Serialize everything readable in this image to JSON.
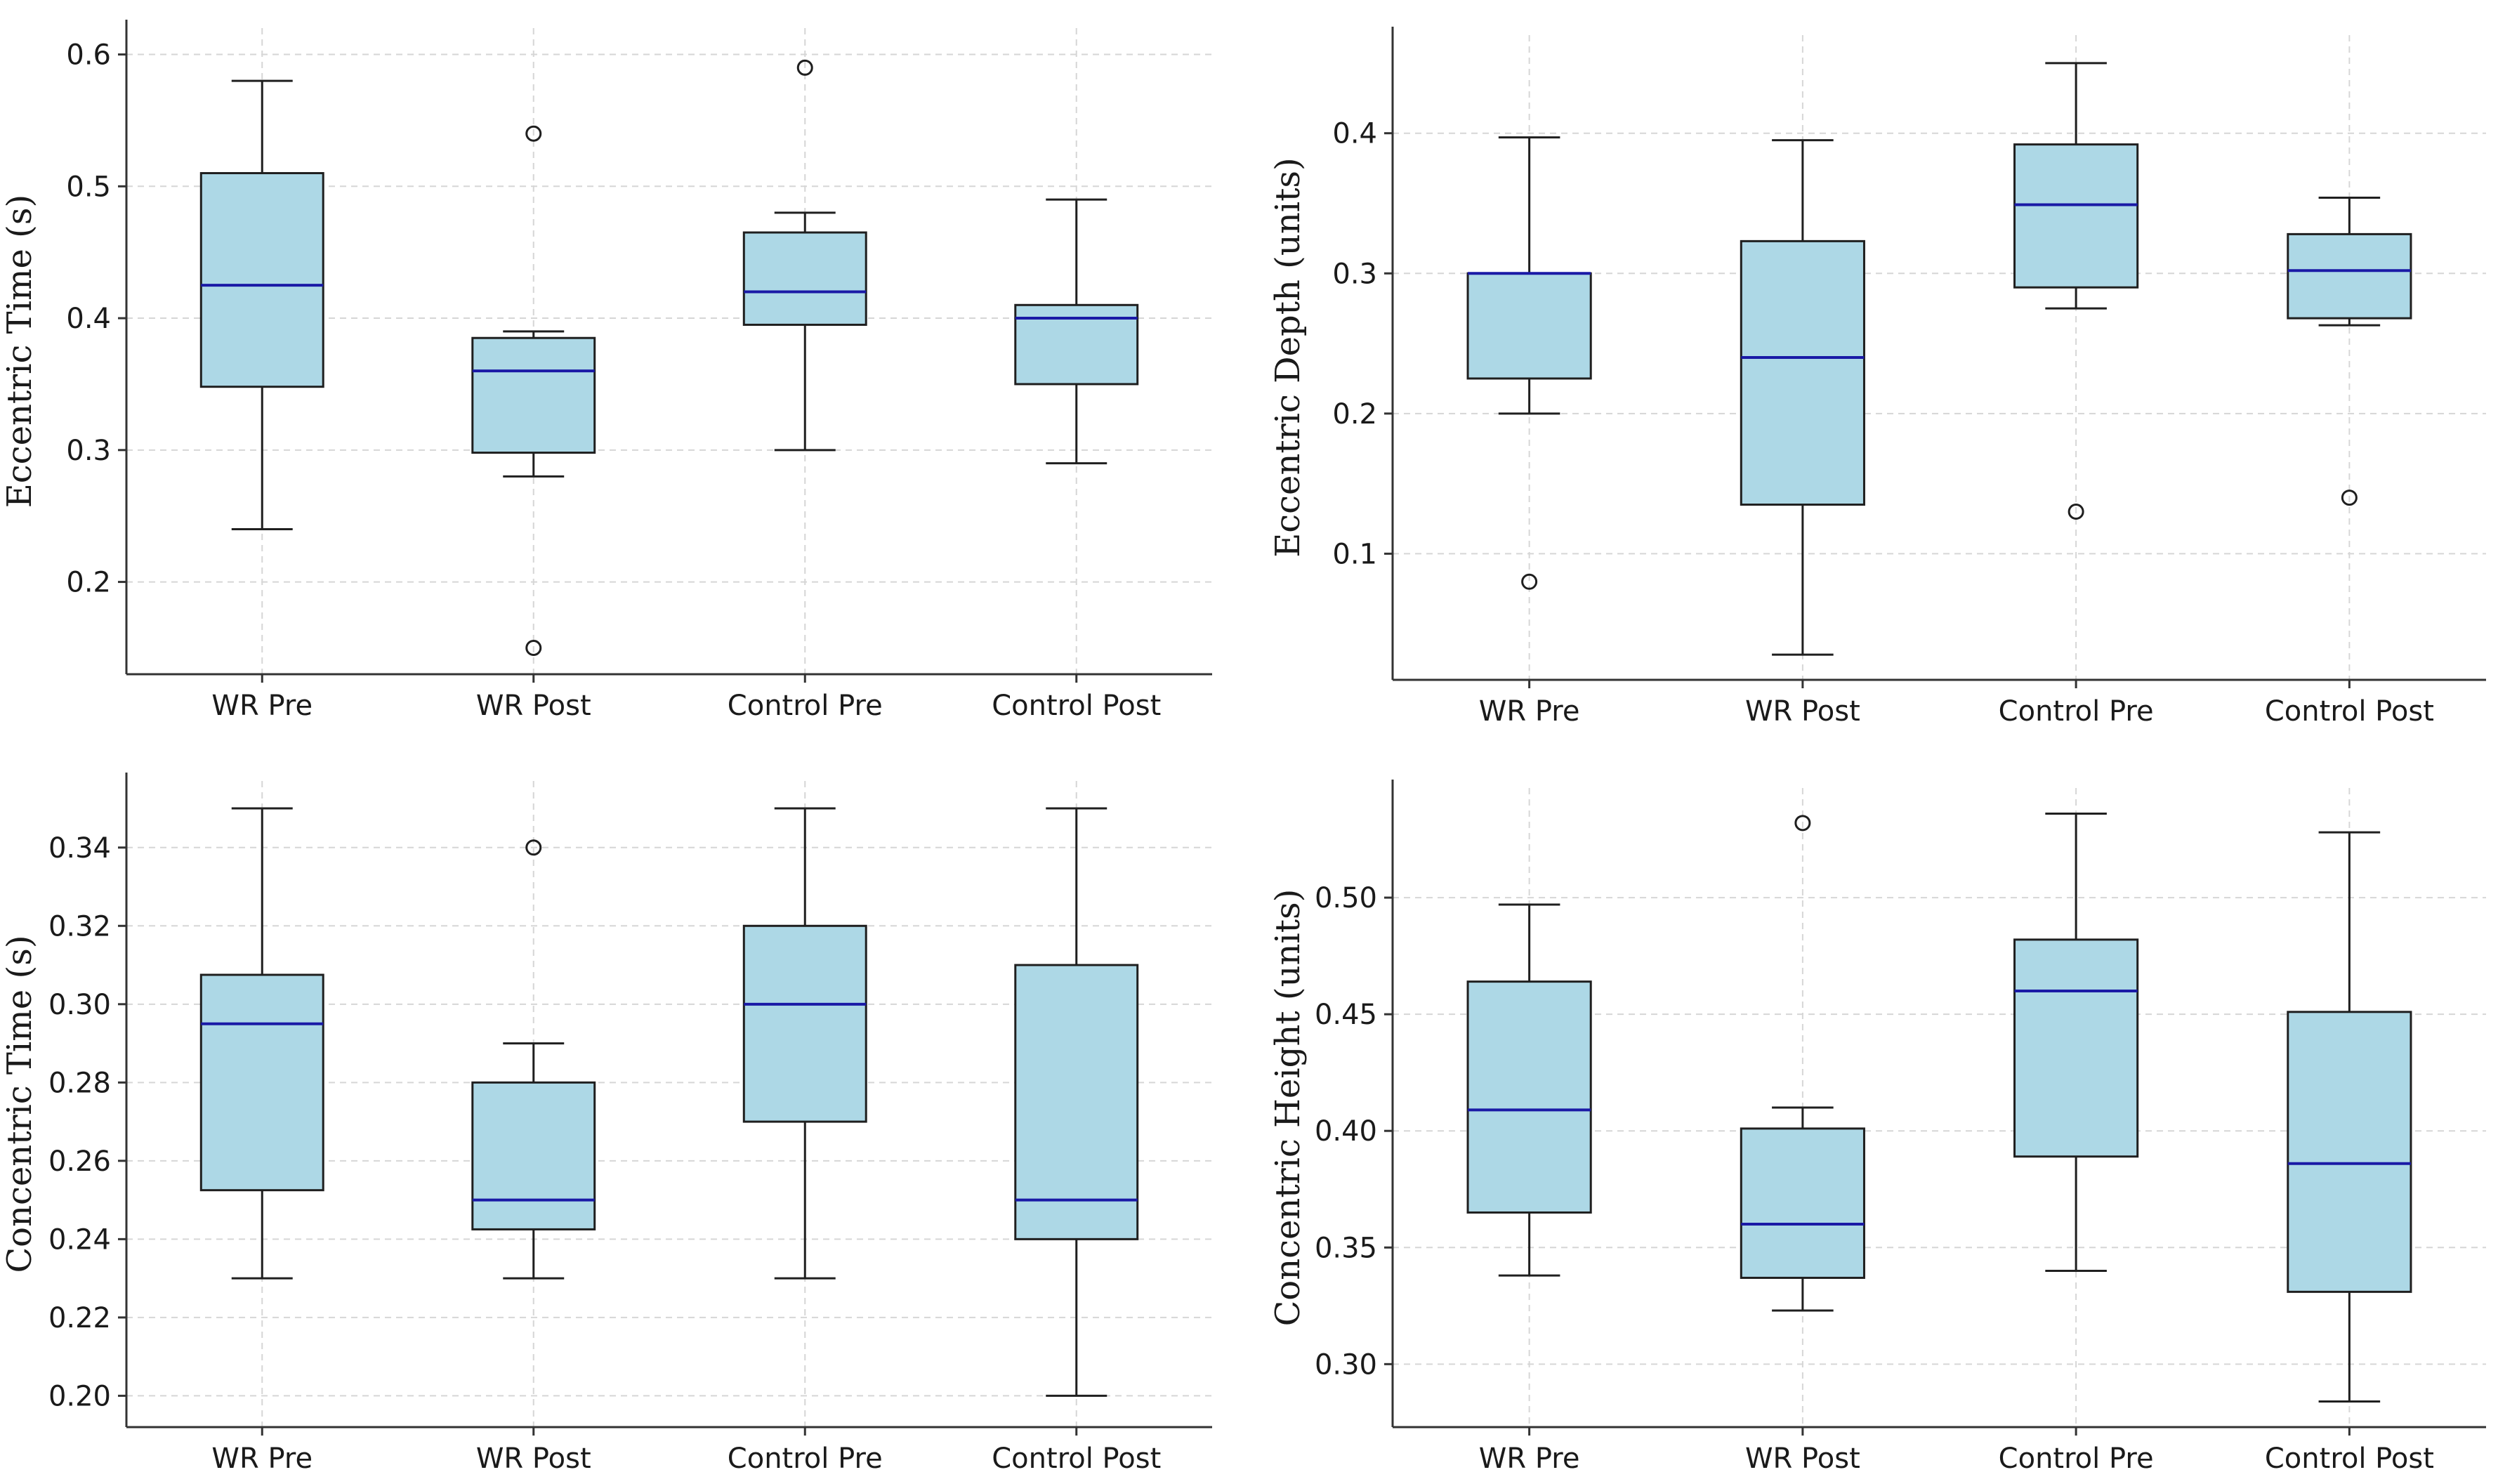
{
  "chart_data": [
    {
      "type": "box",
      "ylabel": "Eccentric Time (s)",
      "categories": [
        "WR Pre",
        "WR Post",
        "Control Pre",
        "Control Post"
      ],
      "ylim": [
        0.13,
        0.62
      ],
      "yticks": [
        0.2,
        0.3,
        0.4,
        0.5,
        0.6
      ],
      "tick_labels": [
        "0.2",
        "0.3",
        "0.4",
        "0.5",
        "0.6"
      ],
      "grid": true,
      "boxes": [
        {
          "category": "WR Pre",
          "whisker_low": 0.24,
          "q1": 0.348,
          "median": 0.425,
          "q3": 0.51,
          "whisker_high": 0.58,
          "outliers": []
        },
        {
          "category": "WR Post",
          "whisker_low": 0.28,
          "q1": 0.298,
          "median": 0.36,
          "q3": 0.385,
          "whisker_high": 0.39,
          "outliers": [
            0.54,
            0.15
          ]
        },
        {
          "category": "Control Pre",
          "whisker_low": 0.3,
          "q1": 0.395,
          "median": 0.42,
          "q3": 0.465,
          "whisker_high": 0.48,
          "outliers": [
            0.59
          ]
        },
        {
          "category": "Control Post",
          "whisker_low": 0.29,
          "q1": 0.35,
          "median": 0.4,
          "q3": 0.41,
          "whisker_high": 0.49,
          "outliers": []
        }
      ]
    },
    {
      "type": "box",
      "ylabel": "Eccentric Depth (units)",
      "categories": [
        "WR Pre",
        "WR Post",
        "Control Pre",
        "Control Post"
      ],
      "ylim": [
        0.01,
        0.47
      ],
      "yticks": [
        0.1,
        0.2,
        0.3,
        0.4
      ],
      "tick_labels": [
        "0.1",
        "0.2",
        "0.3",
        "0.4"
      ],
      "grid": true,
      "boxes": [
        {
          "category": "WR Pre",
          "whisker_low": 0.2,
          "q1": 0.225,
          "median": 0.3,
          "q3": 0.3,
          "whisker_high": 0.397,
          "outliers": [
            0.08
          ]
        },
        {
          "category": "WR Post",
          "whisker_low": 0.028,
          "q1": 0.135,
          "median": 0.24,
          "q3": 0.323,
          "whisker_high": 0.395,
          "outliers": []
        },
        {
          "category": "Control Pre",
          "whisker_low": 0.275,
          "q1": 0.29,
          "median": 0.349,
          "q3": 0.392,
          "whisker_high": 0.45,
          "outliers": [
            0.13
          ]
        },
        {
          "category": "Control Post",
          "whisker_low": 0.263,
          "q1": 0.268,
          "median": 0.302,
          "q3": 0.328,
          "whisker_high": 0.354,
          "outliers": [
            0.14
          ]
        }
      ]
    },
    {
      "type": "box",
      "ylabel": "Concentric Time (s)",
      "categories": [
        "WR Pre",
        "WR Post",
        "Control Pre",
        "Control Post"
      ],
      "ylim": [
        0.192,
        0.357
      ],
      "yticks": [
        0.2,
        0.22,
        0.24,
        0.26,
        0.28,
        0.3,
        0.32,
        0.34
      ],
      "tick_labels": [
        "0.20",
        "0.22",
        "0.24",
        "0.26",
        "0.28",
        "0.30",
        "0.32",
        "0.34"
      ],
      "grid": true,
      "boxes": [
        {
          "category": "WR Pre",
          "whisker_low": 0.23,
          "q1": 0.2525,
          "median": 0.295,
          "q3": 0.3075,
          "whisker_high": 0.35,
          "outliers": []
        },
        {
          "category": "WR Post",
          "whisker_low": 0.23,
          "q1": 0.2425,
          "median": 0.25,
          "q3": 0.28,
          "whisker_high": 0.29,
          "outliers": [
            0.34
          ]
        },
        {
          "category": "Control Pre",
          "whisker_low": 0.23,
          "q1": 0.27,
          "median": 0.3,
          "q3": 0.32,
          "whisker_high": 0.35,
          "outliers": []
        },
        {
          "category": "Control Post",
          "whisker_low": 0.2,
          "q1": 0.24,
          "median": 0.25,
          "q3": 0.31,
          "whisker_high": 0.35,
          "outliers": []
        }
      ]
    },
    {
      "type": "box",
      "ylabel": "Concentric Height (units)",
      "categories": [
        "WR Pre",
        "WR Post",
        "Control Pre",
        "Control Post"
      ],
      "ylim": [
        0.273,
        0.547
      ],
      "yticks": [
        0.3,
        0.35,
        0.4,
        0.45,
        0.5
      ],
      "tick_labels": [
        "0.30",
        "0.35",
        "0.40",
        "0.45",
        "0.50"
      ],
      "grid": true,
      "boxes": [
        {
          "category": "WR Pre",
          "whisker_low": 0.338,
          "q1": 0.365,
          "median": 0.409,
          "q3": 0.464,
          "whisker_high": 0.497,
          "outliers": []
        },
        {
          "category": "WR Post",
          "whisker_low": 0.323,
          "q1": 0.337,
          "median": 0.36,
          "q3": 0.401,
          "whisker_high": 0.41,
          "outliers": [
            0.532
          ]
        },
        {
          "category": "Control Pre",
          "whisker_low": 0.34,
          "q1": 0.389,
          "median": 0.46,
          "q3": 0.482,
          "whisker_high": 0.536,
          "outliers": []
        },
        {
          "category": "Control Post",
          "whisker_low": 0.284,
          "q1": 0.331,
          "median": 0.386,
          "q3": 0.451,
          "whisker_high": 0.528,
          "outliers": []
        }
      ]
    }
  ],
  "colors": {
    "box_fill": "#add8e6",
    "box_edge": "#1f1f1f",
    "median": "#1a1aa6",
    "grid": "#d6d6d6",
    "axis": "#333333"
  }
}
